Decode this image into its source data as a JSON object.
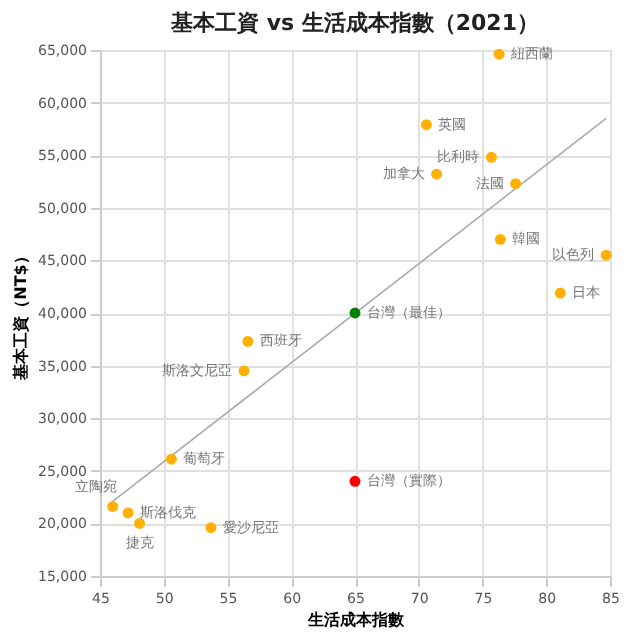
{
  "chart_data": {
    "type": "scatter",
    "title": "基本工資 vs 生活成本指數（2021）",
    "xlabel": "生活成本指數",
    "ylabel": "基本工資（NT$）",
    "xlim": [
      45,
      85
    ],
    "xticks": [
      45,
      50,
      55,
      60,
      65,
      70,
      75,
      80,
      85
    ],
    "ylim": [
      15000,
      65000
    ],
    "yticks": [
      {
        "value": 15000,
        "label": "15,000"
      },
      {
        "value": 20000,
        "label": "20,000"
      },
      {
        "value": 25000,
        "label": "25,000"
      },
      {
        "value": 30000,
        "label": "30,000"
      },
      {
        "value": 35000,
        "label": "35,000"
      },
      {
        "value": 40000,
        "label": "40,000"
      },
      {
        "value": 45000,
        "label": "45,000"
      },
      {
        "value": 50000,
        "label": "50,000"
      },
      {
        "value": 55000,
        "label": "55,000"
      },
      {
        "value": 60000,
        "label": "60,000"
      },
      {
        "value": 65000,
        "label": "65,000"
      }
    ],
    "grid": true,
    "legend": false,
    "marker": "circle",
    "series": [
      {
        "name": "紐西蘭",
        "color": "#ffb000",
        "x": [
          76.3
        ],
        "values": [
          64600
        ]
      },
      {
        "name": "英國",
        "color": "#ffb000",
        "x": [
          70.6
        ],
        "values": [
          57900
        ]
      },
      {
        "name": "比利時",
        "color": "#ffb000",
        "x": [
          75.7
        ],
        "values": [
          54800
        ]
      },
      {
        "name": "加拿大",
        "color": "#ffb000",
        "x": [
          71.4
        ],
        "values": [
          53200
        ]
      },
      {
        "name": "法國",
        "color": "#ffb000",
        "x": [
          77.6
        ],
        "values": [
          52300
        ]
      },
      {
        "name": "韓國",
        "color": "#ffb000",
        "x": [
          76.4
        ],
        "values": [
          47000
        ]
      },
      {
        "name": "以色列",
        "color": "#ffb000",
        "x": [
          84.7
        ],
        "values": [
          45500
        ]
      },
      {
        "name": "日本",
        "color": "#ffb000",
        "x": [
          81.1
        ],
        "values": [
          41900
        ]
      },
      {
        "name": "台灣（最佳）",
        "color": "#008000",
        "x": [
          65
        ],
        "values": [
          40000
        ]
      },
      {
        "name": "西班牙",
        "color": "#ffb000",
        "x": [
          56.6
        ],
        "values": [
          37300
        ]
      },
      {
        "name": "斯洛文尼亞",
        "color": "#ffb000",
        "x": [
          56.3
        ],
        "values": [
          34500
        ]
      },
      {
        "name": "葡萄牙",
        "color": "#ffb000",
        "x": [
          50.6
        ],
        "values": [
          26100
        ]
      },
      {
        "name": "台灣（實際）",
        "color": "#ff0000",
        "x": [
          65
        ],
        "values": [
          24000
        ]
      },
      {
        "name": "立陶宛",
        "color": "#ffb000",
        "x": [
          46.0
        ],
        "values": [
          21600
        ]
      },
      {
        "name": "斯洛伐克",
        "color": "#ffb000",
        "x": [
          47.2
        ],
        "values": [
          21000
        ]
      },
      {
        "name": "捷克",
        "color": "#ffb000",
        "x": [
          48.1
        ],
        "values": [
          20000
        ]
      },
      {
        "name": "愛沙尼亞",
        "color": "#ffb000",
        "x": [
          53.7
        ],
        "values": [
          19600
        ]
      },
      {
        "type": "line",
        "marker": "none",
        "color": "#aaaaaa",
        "x": [
          46.0,
          84.7
        ],
        "values": [
          22100,
          58500
        ]
      }
    ]
  }
}
